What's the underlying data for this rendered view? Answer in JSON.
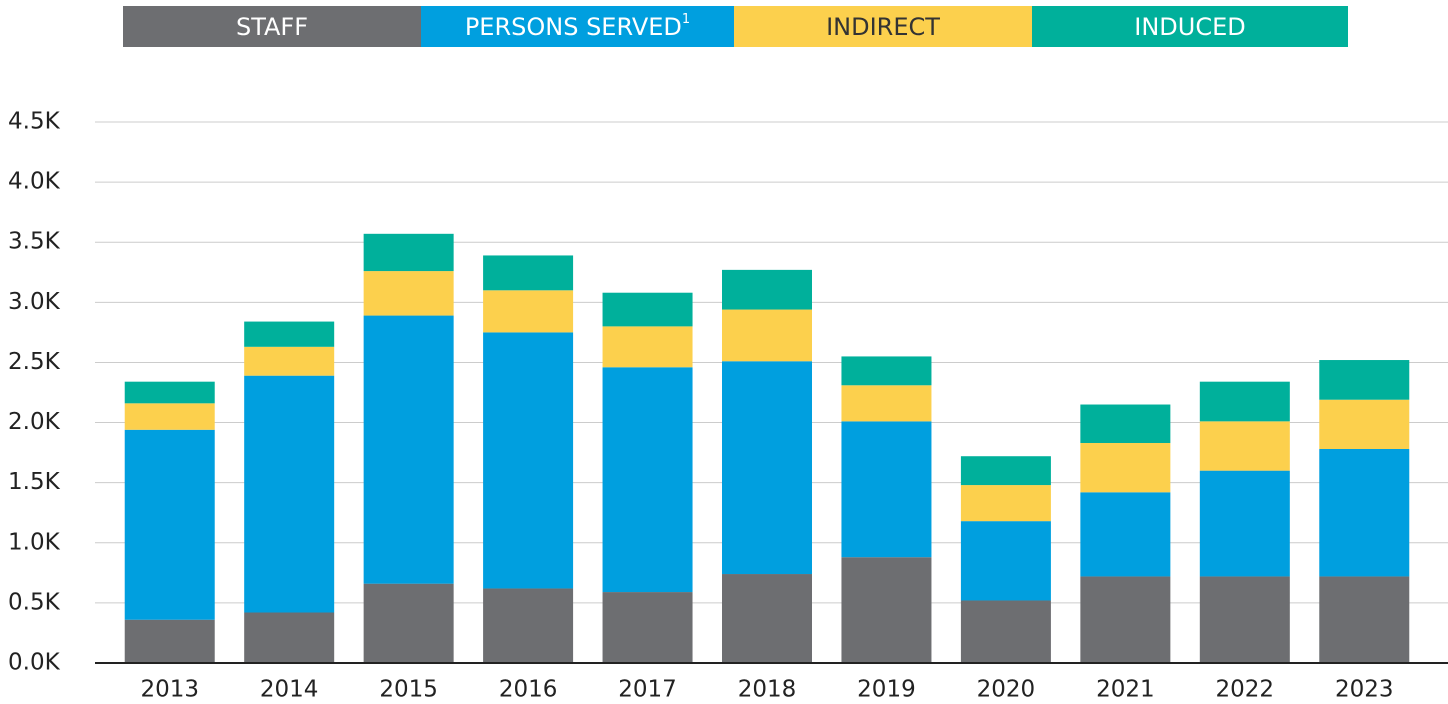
{
  "chart_data": {
    "type": "stacked_bar",
    "categories": [
      "2013",
      "2014",
      "2015",
      "2016",
      "2017",
      "2018",
      "2019",
      "2020",
      "2021",
      "2022",
      "2023"
    ],
    "series": [
      {
        "name": "STAFF",
        "color": "#6d6e71",
        "text_color": "#ffffff",
        "values": [
          360,
          420,
          660,
          620,
          590,
          740,
          880,
          520,
          720,
          720,
          720
        ]
      },
      {
        "name": "PERSONS SERVED",
        "superscript": "1",
        "color": "#009fdf",
        "text_color": "#ffffff",
        "values": [
          1580,
          1970,
          2230,
          2130,
          1870,
          1770,
          1130,
          660,
          700,
          880,
          1060
        ]
      },
      {
        "name": "INDIRECT",
        "color": "#fcd04d",
        "text_color": "#333333",
        "values": [
          220,
          240,
          370,
          350,
          340,
          430,
          300,
          300,
          410,
          410,
          410
        ]
      },
      {
        "name": "INDUCED",
        "color": "#00b09b",
        "text_color": "#ffffff",
        "values": [
          180,
          210,
          310,
          290,
          280,
          330,
          240,
          240,
          320,
          330,
          330
        ]
      }
    ],
    "ylim": [
      0,
      4500
    ],
    "yticks": [
      {
        "value": 0,
        "label": "0.0K"
      },
      {
        "value": 500,
        "label": "0.5K"
      },
      {
        "value": 1000,
        "label": "1.0K"
      },
      {
        "value": 1500,
        "label": "1.5K"
      },
      {
        "value": 2000,
        "label": "2.0K"
      },
      {
        "value": 2500,
        "label": "2.5K"
      },
      {
        "value": 3000,
        "label": "3.0K"
      },
      {
        "value": 3500,
        "label": "3.5K"
      },
      {
        "value": 4000,
        "label": "4.0K"
      },
      {
        "value": 4500,
        "label": "4.5K"
      }
    ],
    "grid": true,
    "legend": "top"
  }
}
